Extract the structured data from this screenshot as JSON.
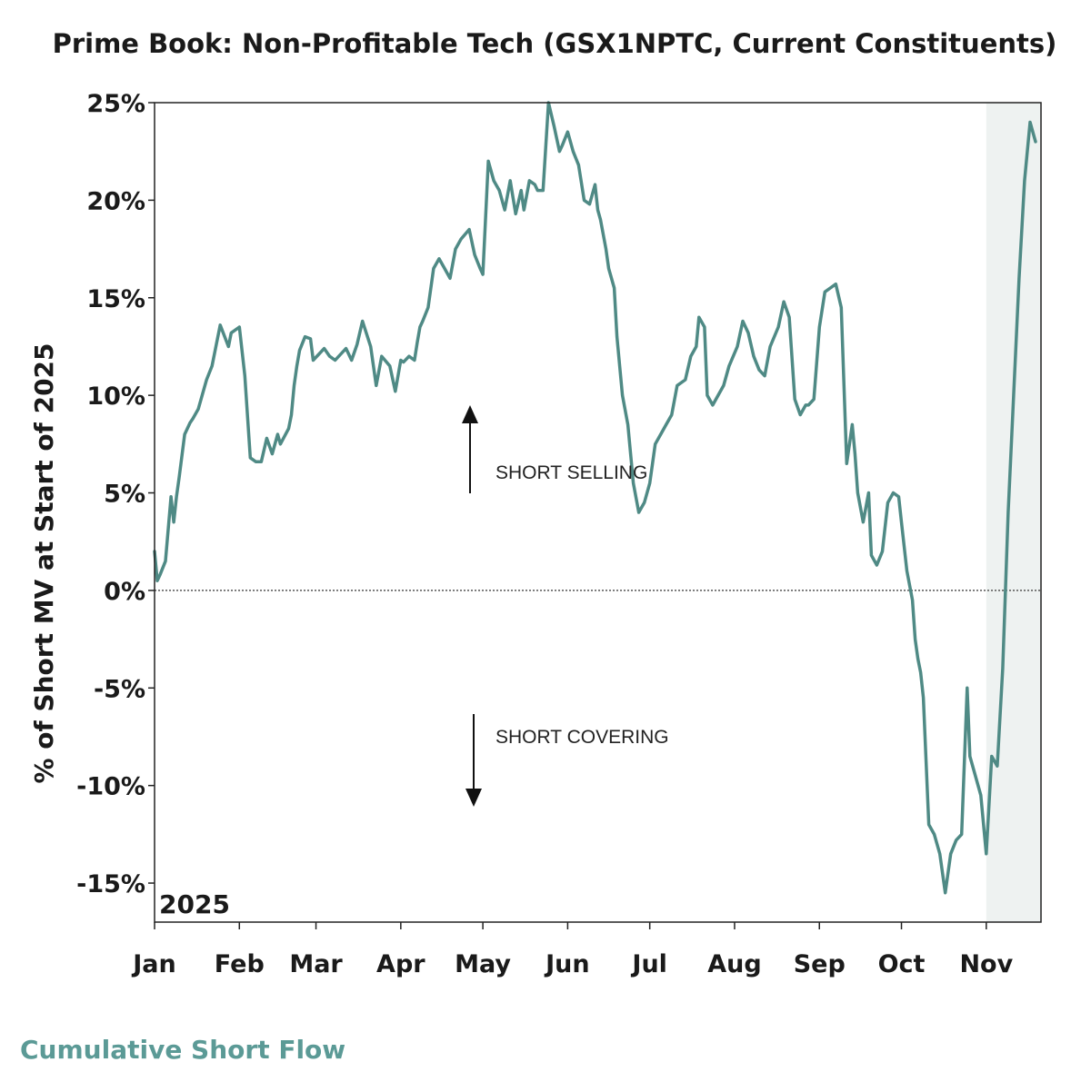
{
  "chart_data": {
    "type": "line",
    "title": "Prime Book: Non-Profitable Tech (GSX1NPTC, Current Constituents)",
    "ylabel": "% of Short MV at Start of 2025",
    "year_label": "2025",
    "footer": "Cumulative Short Flow",
    "ylim": [
      -17,
      25
    ],
    "y_ticks": [
      25,
      20,
      15,
      10,
      5,
      0,
      -5,
      -10,
      -15
    ],
    "y_tick_labels": [
      "25%",
      "20%",
      "15%",
      "10%",
      "5%",
      "0%",
      "-5%",
      "-10%",
      "-15%"
    ],
    "x_ticks": [
      "Jan",
      "Feb",
      "Mar",
      "Apr",
      "May",
      "Jun",
      "Jul",
      "Aug",
      "Sep",
      "Oct",
      "Nov"
    ],
    "xlim": [
      "2025-01-01",
      "2025-11-21"
    ],
    "zero_line": true,
    "grid": false,
    "shaded_region": [
      "2025-11-01",
      "2025-11-21"
    ],
    "annotations": [
      {
        "text": "SHORT SELLING",
        "direction": "up"
      },
      {
        "text": "SHORT COVERING",
        "direction": "down"
      }
    ],
    "colors": {
      "line": "#4f8a85",
      "shade": "#eef2f1",
      "footer": "#5b9a96"
    },
    "series": [
      {
        "x": [
          "2025-01-01",
          "2025-01-02",
          "2025-01-03",
          "2025-01-05",
          "2025-01-07",
          "2025-01-08",
          "2025-01-09",
          "2025-01-10",
          "2025-01-12",
          "2025-01-14",
          "2025-01-15",
          "2025-01-17",
          "2025-01-20",
          "2025-01-22",
          "2025-01-25",
          "2025-01-28",
          "2025-01-29",
          "2025-02-01",
          "2025-02-03",
          "2025-02-05",
          "2025-02-07",
          "2025-02-09",
          "2025-02-11",
          "2025-02-13",
          "2025-02-15",
          "2025-02-16",
          "2025-02-19",
          "2025-02-20",
          "2025-02-21",
          "2025-02-22",
          "2025-02-23",
          "2025-02-25",
          "2025-02-27",
          "2025-02-28",
          "2025-03-02",
          "2025-03-04",
          "2025-03-06",
          "2025-03-08",
          "2025-03-10",
          "2025-03-12",
          "2025-03-14",
          "2025-03-16",
          "2025-03-18",
          "2025-03-21",
          "2025-03-23",
          "2025-03-25",
          "2025-03-28",
          "2025-03-30",
          "2025-04-01",
          "2025-04-02",
          "2025-04-04",
          "2025-04-06",
          "2025-04-07",
          "2025-04-08",
          "2025-04-09",
          "2025-04-11",
          "2025-04-13",
          "2025-04-15",
          "2025-04-17",
          "2025-04-19",
          "2025-04-21",
          "2025-04-23",
          "2025-04-26",
          "2025-04-28",
          "2025-04-30",
          "2025-05-01",
          "2025-05-03",
          "2025-05-05",
          "2025-05-07",
          "2025-05-09",
          "2025-05-11",
          "2025-05-13",
          "2025-05-15",
          "2025-05-16",
          "2025-05-18",
          "2025-05-20",
          "2025-05-21",
          "2025-05-23",
          "2025-05-25",
          "2025-05-27",
          "2025-05-29",
          "2025-05-30",
          "2025-06-01",
          "2025-06-03",
          "2025-06-05",
          "2025-06-07",
          "2025-06-09",
          "2025-06-11",
          "2025-06-12",
          "2025-06-13",
          "2025-06-15",
          "2025-06-16",
          "2025-06-18",
          "2025-06-19",
          "2025-06-21",
          "2025-06-23",
          "2025-06-25",
          "2025-06-27",
          "2025-06-29",
          "2025-07-01",
          "2025-07-03",
          "2025-07-05",
          "2025-07-07",
          "2025-07-09",
          "2025-07-11",
          "2025-07-14",
          "2025-07-16",
          "2025-07-18",
          "2025-07-19",
          "2025-07-21",
          "2025-07-22",
          "2025-07-24",
          "2025-07-26",
          "2025-07-28",
          "2025-07-30",
          "2025-08-02",
          "2025-08-04",
          "2025-08-06",
          "2025-08-08",
          "2025-08-10",
          "2025-08-12",
          "2025-08-14",
          "2025-08-17",
          "2025-08-19",
          "2025-08-21",
          "2025-08-23",
          "2025-08-25",
          "2025-08-27",
          "2025-08-28",
          "2025-08-30",
          "2025-09-01",
          "2025-09-03",
          "2025-09-05",
          "2025-09-07",
          "2025-09-09",
          "2025-09-11",
          "2025-09-13",
          "2025-09-14",
          "2025-09-15",
          "2025-09-17",
          "2025-09-19",
          "2025-09-20",
          "2025-09-22",
          "2025-09-24",
          "2025-09-26",
          "2025-09-28",
          "2025-09-30",
          "2025-10-01",
          "2025-10-03",
          "2025-10-05",
          "2025-10-06",
          "2025-10-07",
          "2025-10-08",
          "2025-10-09",
          "2025-10-11",
          "2025-10-13",
          "2025-10-15",
          "2025-10-17",
          "2025-10-19",
          "2025-10-21",
          "2025-10-23",
          "2025-10-25",
          "2025-10-26",
          "2025-10-28",
          "2025-10-30",
          "2025-11-01",
          "2025-11-03",
          "2025-11-05",
          "2025-11-07",
          "2025-11-09",
          "2025-11-11",
          "2025-11-13",
          "2025-11-15",
          "2025-11-17",
          "2025-11-19"
        ],
        "y": [
          2.0,
          0.5,
          0.8,
          1.5,
          4.8,
          3.5,
          4.8,
          5.8,
          8.0,
          8.6,
          8.8,
          9.3,
          10.8,
          11.5,
          13.6,
          12.5,
          13.2,
          13.5,
          11.0,
          6.8,
          6.6,
          6.6,
          7.8,
          7.0,
          8.0,
          7.5,
          8.3,
          9.0,
          10.5,
          11.5,
          12.3,
          13.0,
          12.9,
          11.8,
          12.1,
          12.4,
          12.0,
          11.8,
          12.1,
          12.4,
          11.8,
          12.6,
          13.8,
          12.5,
          10.5,
          12.0,
          11.5,
          10.2,
          11.8,
          11.7,
          12.0,
          11.8,
          12.7,
          13.5,
          13.8,
          14.5,
          16.5,
          17.0,
          16.5,
          16.0,
          17.5,
          18.0,
          18.5,
          17.2,
          16.5,
          16.2,
          22.0,
          21.0,
          20.5,
          19.5,
          21.0,
          19.3,
          20.5,
          19.5,
          21.0,
          20.8,
          20.5,
          20.5,
          25.0,
          23.8,
          22.5,
          22.8,
          23.5,
          22.5,
          21.8,
          20.0,
          19.8,
          20.8,
          19.5,
          19.0,
          17.5,
          16.5,
          15.5,
          13.0,
          10.0,
          8.5,
          5.5,
          4.0,
          4.5,
          5.5,
          7.5,
          8.0,
          8.5,
          9.0,
          10.5,
          10.8,
          12.0,
          12.5,
          14.0,
          13.5,
          10.0,
          9.5,
          10.0,
          10.5,
          11.5,
          12.5,
          13.8,
          13.2,
          12.0,
          11.3,
          11.0,
          12.5,
          13.5,
          14.8,
          14.0,
          9.8,
          9.0,
          9.5,
          9.5,
          9.8,
          13.5,
          15.3,
          15.5,
          15.7,
          14.5,
          6.5,
          8.5,
          7.0,
          5.0,
          3.5,
          5.0,
          1.8,
          1.3,
          2.0,
          4.5,
          5.0,
          4.8,
          3.5,
          1.0,
          -0.5,
          -2.5,
          -3.5,
          -4.2,
          -5.5,
          -12.0,
          -12.5,
          -13.5,
          -15.5,
          -13.5,
          -12.8,
          -12.5,
          -5.0,
          -8.5,
          -9.5,
          -10.5,
          -13.5,
          -8.5,
          -9.0,
          -4.0,
          4.0,
          10.0,
          16.0,
          21.0,
          24.0,
          23.0
        ]
      }
    ]
  }
}
